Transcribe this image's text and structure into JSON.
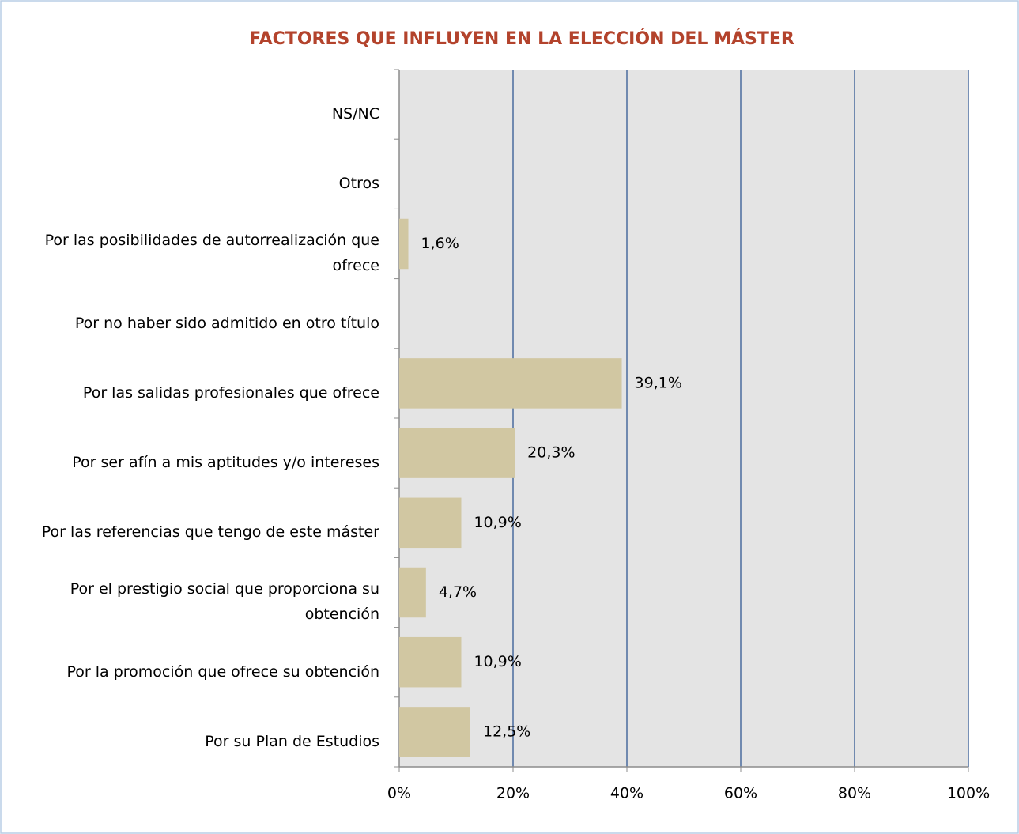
{
  "chart_data": {
    "type": "barh",
    "title": "FACTORES QUE INFLUYEN EN LA ELECCIÓN DEL MÁSTER",
    "categories": [
      "NS/NC",
      "Otros",
      "Por las posibilidades de autorrealización que ofrece",
      "Por no haber sido admitido en otro título",
      "Por las salidas profesionales que ofrece",
      "Por ser afín a mis aptitudes y/o intereses",
      "Por las referencias que tengo de este máster",
      "Por el prestigio social que proporciona su obtención",
      "Por la promoción que ofrece su obtención",
      "Por su Plan de Estudios"
    ],
    "values": [
      null,
      null,
      1.6,
      null,
      39.1,
      20.3,
      10.9,
      4.7,
      10.9,
      12.5
    ],
    "value_labels": [
      null,
      null,
      "1,6%",
      null,
      "39,1%",
      "20,3%",
      "10,9%",
      "4,7%",
      "10,9%",
      "12,5%"
    ],
    "color": "#d1c7a2",
    "xlim": [
      0,
      100
    ],
    "xticks": [
      {
        "value": 0,
        "label": "0%"
      },
      {
        "value": 20,
        "label": "20%"
      },
      {
        "value": 40,
        "label": "40%"
      },
      {
        "value": 60,
        "label": "60%"
      },
      {
        "value": 80,
        "label": "80%"
      },
      {
        "value": 100,
        "label": "100%"
      }
    ],
    "grid": true
  }
}
